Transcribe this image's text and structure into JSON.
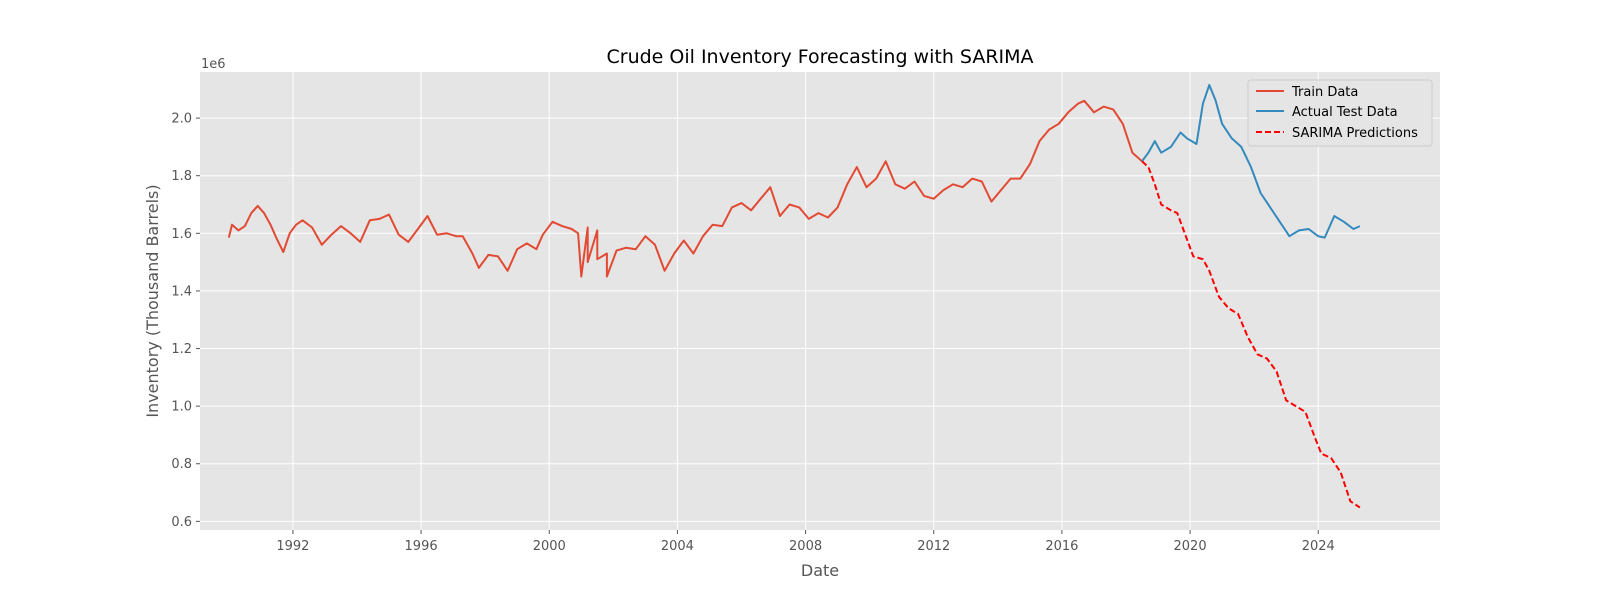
{
  "chart_data": {
    "type": "line",
    "title": "Crude Oil Inventory Forecasting with SARIMA",
    "xlabel": "Date",
    "ylabel": "Inventory (Thousand Barrels)",
    "y_scale_label": "1e6",
    "xlim": [
      1989.1,
      2027.8
    ],
    "ylim": [
      570000,
      2160000
    ],
    "x_ticks": [
      1992,
      1996,
      2000,
      2004,
      2008,
      2012,
      2016,
      2020,
      2024
    ],
    "y_ticks": [
      0.6,
      0.8,
      1.0,
      1.2,
      1.4,
      1.6,
      1.8,
      2.0
    ],
    "grid": true,
    "legend_position": "top-right",
    "series": [
      {
        "name": "Train Data",
        "color": "#E24A33",
        "style": "solid",
        "points": [
          [
            1990.0,
            1585000
          ],
          [
            1990.1,
            1630000
          ],
          [
            1990.3,
            1610000
          ],
          [
            1990.5,
            1625000
          ],
          [
            1990.7,
            1670000
          ],
          [
            1990.9,
            1695000
          ],
          [
            1991.1,
            1670000
          ],
          [
            1991.3,
            1630000
          ],
          [
            1991.5,
            1580000
          ],
          [
            1991.7,
            1535000
          ],
          [
            1991.9,
            1600000
          ],
          [
            1992.1,
            1630000
          ],
          [
            1992.3,
            1645000
          ],
          [
            1992.6,
            1620000
          ],
          [
            1992.9,
            1560000
          ],
          [
            1993.2,
            1595000
          ],
          [
            1993.5,
            1625000
          ],
          [
            1993.8,
            1600000
          ],
          [
            1994.1,
            1570000
          ],
          [
            1994.4,
            1645000
          ],
          [
            1994.7,
            1650000
          ],
          [
            1995.0,
            1665000
          ],
          [
            1995.3,
            1595000
          ],
          [
            1995.6,
            1570000
          ],
          [
            1995.9,
            1615000
          ],
          [
            1996.2,
            1660000
          ],
          [
            1996.5,
            1595000
          ],
          [
            1996.8,
            1600000
          ],
          [
            1997.1,
            1590000
          ],
          [
            1997.3,
            1590000
          ],
          [
            1997.6,
            1530000
          ],
          [
            1997.8,
            1480000
          ],
          [
            1998.1,
            1525000
          ],
          [
            1998.4,
            1520000
          ],
          [
            1998.7,
            1470000
          ],
          [
            1999.0,
            1545000
          ],
          [
            1999.3,
            1565000
          ],
          [
            1999.6,
            1545000
          ],
          [
            1999.8,
            1595000
          ],
          [
            2000.1,
            1640000
          ],
          [
            2000.4,
            1625000
          ],
          [
            2000.7,
            1615000
          ],
          [
            2000.9,
            1600000
          ],
          [
            2001.2,
            1620000
          ],
          [
            2001.5,
            1610000
          ],
          [
            2001.8,
            1530000
          ],
          [
            2001.0,
            1450000
          ],
          [
            2001.2,
            1500000
          ],
          [
            2001.5,
            1510000
          ],
          [
            2001.8,
            1450000
          ],
          [
            2002.1,
            1540000
          ],
          [
            2002.4,
            1550000
          ],
          [
            2002.7,
            1545000
          ],
          [
            2003.0,
            1590000
          ],
          [
            2003.3,
            1560000
          ],
          [
            2003.6,
            1470000
          ],
          [
            2003.9,
            1530000
          ],
          [
            2004.2,
            1575000
          ],
          [
            2004.5,
            1530000
          ],
          [
            2004.8,
            1590000
          ],
          [
            2005.1,
            1630000
          ],
          [
            2005.4,
            1625000
          ],
          [
            2005.7,
            1690000
          ],
          [
            2006.0,
            1705000
          ],
          [
            2006.3,
            1680000
          ],
          [
            2006.6,
            1720000
          ],
          [
            2006.9,
            1760000
          ],
          [
            2007.2,
            1660000
          ],
          [
            2007.5,
            1700000
          ],
          [
            2007.8,
            1690000
          ],
          [
            2008.1,
            1650000
          ],
          [
            2008.4,
            1670000
          ],
          [
            2008.7,
            1655000
          ],
          [
            2009.0,
            1690000
          ],
          [
            2009.3,
            1770000
          ],
          [
            2009.6,
            1830000
          ],
          [
            2009.9,
            1760000
          ],
          [
            2010.2,
            1790000
          ],
          [
            2010.5,
            1850000
          ],
          [
            2010.8,
            1770000
          ],
          [
            2011.1,
            1755000
          ],
          [
            2011.4,
            1780000
          ],
          [
            2011.7,
            1730000
          ],
          [
            2012.0,
            1720000
          ],
          [
            2012.3,
            1750000
          ],
          [
            2012.6,
            1770000
          ],
          [
            2012.9,
            1760000
          ],
          [
            2013.2,
            1790000
          ],
          [
            2013.5,
            1780000
          ],
          [
            2013.8,
            1710000
          ],
          [
            2014.1,
            1750000
          ],
          [
            2014.4,
            1790000
          ],
          [
            2014.7,
            1790000
          ],
          [
            2015.0,
            1840000
          ],
          [
            2015.3,
            1920000
          ],
          [
            2015.6,
            1960000
          ],
          [
            2015.9,
            1980000
          ],
          [
            2016.2,
            2020000
          ],
          [
            2016.5,
            2050000
          ],
          [
            2016.7,
            2060000
          ],
          [
            2017.0,
            2020000
          ],
          [
            2017.3,
            2040000
          ],
          [
            2017.6,
            2030000
          ],
          [
            2017.9,
            1980000
          ],
          [
            2018.2,
            1880000
          ],
          [
            2018.5,
            1850000
          ]
        ]
      },
      {
        "name": "Actual Test Data",
        "color": "#348ABD",
        "style": "solid",
        "points": [
          [
            2018.5,
            1850000
          ],
          [
            2018.7,
            1880000
          ],
          [
            2018.9,
            1920000
          ],
          [
            2019.1,
            1880000
          ],
          [
            2019.4,
            1900000
          ],
          [
            2019.7,
            1950000
          ],
          [
            2019.9,
            1930000
          ],
          [
            2020.2,
            1910000
          ],
          [
            2020.4,
            2050000
          ],
          [
            2020.6,
            2115000
          ],
          [
            2020.8,
            2060000
          ],
          [
            2021.0,
            1980000
          ],
          [
            2021.3,
            1930000
          ],
          [
            2021.6,
            1900000
          ],
          [
            2021.9,
            1830000
          ],
          [
            2022.2,
            1740000
          ],
          [
            2022.5,
            1690000
          ],
          [
            2022.8,
            1640000
          ],
          [
            2023.1,
            1590000
          ],
          [
            2023.4,
            1610000
          ],
          [
            2023.7,
            1615000
          ],
          [
            2024.0,
            1590000
          ],
          [
            2024.2,
            1585000
          ],
          [
            2024.5,
            1660000
          ],
          [
            2024.8,
            1640000
          ],
          [
            2025.1,
            1615000
          ],
          [
            2025.3,
            1625000
          ]
        ]
      },
      {
        "name": "SARIMA Predictions",
        "color": "#FF0000",
        "style": "dashed",
        "points": [
          [
            2018.5,
            1850000
          ],
          [
            2018.7,
            1830000
          ],
          [
            2018.9,
            1770000
          ],
          [
            2019.1,
            1700000
          ],
          [
            2019.4,
            1680000
          ],
          [
            2019.6,
            1670000
          ],
          [
            2019.9,
            1580000
          ],
          [
            2020.1,
            1520000
          ],
          [
            2020.4,
            1510000
          ],
          [
            2020.6,
            1470000
          ],
          [
            2020.9,
            1380000
          ],
          [
            2021.2,
            1340000
          ],
          [
            2021.5,
            1320000
          ],
          [
            2021.8,
            1240000
          ],
          [
            2022.1,
            1180000
          ],
          [
            2022.4,
            1165000
          ],
          [
            2022.7,
            1120000
          ],
          [
            2023.0,
            1020000
          ],
          [
            2023.3,
            1000000
          ],
          [
            2023.6,
            980000
          ],
          [
            2023.9,
            890000
          ],
          [
            2024.1,
            835000
          ],
          [
            2024.4,
            820000
          ],
          [
            2024.7,
            770000
          ],
          [
            2025.0,
            670000
          ],
          [
            2025.3,
            648000
          ]
        ]
      }
    ]
  }
}
